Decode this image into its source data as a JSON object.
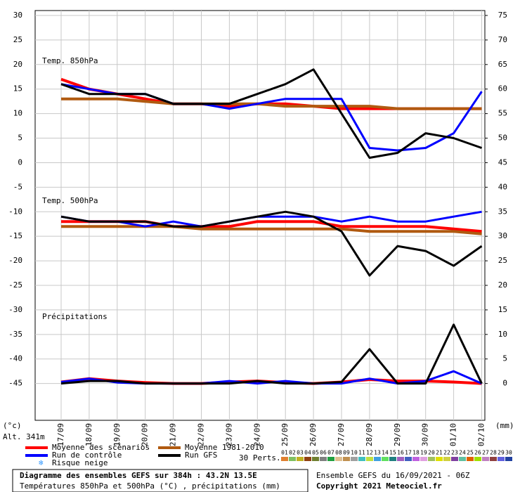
{
  "chart_data": {
    "type": "line",
    "categories": [
      "17/09",
      "18/09",
      "19/09",
      "20/09",
      "21/09",
      "22/09",
      "23/09",
      "24/09",
      "25/09",
      "26/09",
      "27/09",
      "28/09",
      "29/09",
      "30/09",
      "01/10",
      "02/10"
    ],
    "ylim": [
      -52.5,
      31
    ],
    "yticks": [
      30,
      25,
      20,
      15,
      10,
      5,
      0,
      -5,
      -10,
      -15,
      -20,
      -25,
      -30,
      -35,
      -40,
      -45
    ],
    "y2lim": [
      -7.5,
      76
    ],
    "y2ticks": [
      75,
      70,
      65,
      60,
      55,
      50,
      45,
      40,
      35,
      30,
      25,
      20,
      15,
      10,
      5,
      0
    ],
    "grid": true,
    "y_unit_label": "(°c)",
    "y2_unit_label": "(mm)",
    "altitude_label": "Alt. 341m",
    "panel_titles": [
      "Temp. 850hPa",
      "Temp. 500hPa",
      "Précipitations"
    ],
    "series": [
      {
        "name": "Moyenne des scénarios",
        "color": "#ff0000",
        "t850": [
          17,
          15,
          14,
          13,
          12,
          12,
          11.5,
          12,
          12,
          11.5,
          11,
          11,
          11,
          11,
          11,
          11
        ],
        "t500": [
          -12,
          -12,
          -12,
          -12,
          -13,
          -13,
          -13,
          -12,
          -12,
          -12,
          -13,
          -13,
          -13,
          -13,
          -13.5,
          -14
        ],
        "precip": [
          0.3,
          1,
          0.5,
          0.2,
          0,
          0,
          0.3,
          0.5,
          0.2,
          0,
          0.3,
          0.8,
          0.5,
          0.5,
          0.3,
          0
        ]
      },
      {
        "name": "Moyenne 1981-2010",
        "color": "#b05a10",
        "t850": [
          13,
          13,
          13,
          12.5,
          12,
          12,
          12,
          12,
          11.5,
          11.5,
          11.5,
          11.5,
          11,
          11,
          11,
          11
        ],
        "t500": [
          -13,
          -13,
          -13,
          -13,
          -13,
          -13.5,
          -13.5,
          -13.5,
          -13.5,
          -13.5,
          -13.5,
          -14,
          -14,
          -14,
          -14,
          -14.5
        ]
      },
      {
        "name": "Run de contrôle",
        "color": "#0000ff",
        "t850": [
          16,
          15,
          14,
          14,
          12,
          12,
          11,
          12,
          13,
          13,
          13,
          3,
          2.5,
          3,
          6,
          14.5
        ],
        "t500": [
          -11,
          -12,
          -12,
          -13,
          -12,
          -13,
          -12,
          -11,
          -11,
          -11,
          -12,
          -11,
          -12,
          -12,
          -11,
          -10
        ],
        "precip": [
          0.3,
          1,
          0.2,
          0,
          0,
          0,
          0.5,
          0,
          0.5,
          0,
          0,
          1,
          0,
          0.5,
          2.5,
          0
        ]
      },
      {
        "name": "Run GFS",
        "color": "#000000",
        "t850": [
          16,
          14,
          14,
          14,
          12,
          12,
          12,
          14,
          16,
          19,
          10,
          1,
          2,
          6,
          5,
          3
        ],
        "t500": [
          -11,
          -12,
          -12,
          -12,
          -13,
          -13,
          -12,
          -11,
          -10,
          -11,
          -14,
          -23,
          -17,
          -18,
          -21,
          -17
        ],
        "precip": [
          0,
          0.5,
          0.5,
          0,
          0,
          0,
          0,
          0.5,
          0,
          0,
          0.3,
          7,
          0,
          0,
          12,
          0
        ]
      }
    ],
    "snow_label": "Risque neige",
    "perts_label": "30 Perts.",
    "perts": [
      {
        "label": "01",
        "color": "#e08030"
      },
      {
        "label": "02",
        "color": "#80c060"
      },
      {
        "label": "03",
        "color": "#c0b020"
      },
      {
        "label": "04",
        "color": "#904010"
      },
      {
        "label": "05",
        "color": "#708030"
      },
      {
        "label": "06",
        "color": "#808080"
      },
      {
        "label": "07",
        "color": "#20a040"
      },
      {
        "label": "08",
        "color": "#e0c090"
      },
      {
        "label": "09",
        "color": "#c09050"
      },
      {
        "label": "10",
        "color": "#a0a0a0"
      },
      {
        "label": "11",
        "color": "#40c0c0"
      },
      {
        "label": "12",
        "color": "#c0e040"
      },
      {
        "label": "13",
        "color": "#40a0e0"
      },
      {
        "label": "14",
        "color": "#60e060"
      },
      {
        "label": "15",
        "color": "#208080"
      },
      {
        "label": "16",
        "color": "#a060c0"
      },
      {
        "label": "17",
        "color": "#4060c0"
      },
      {
        "label": "18",
        "color": "#c060e0"
      },
      {
        "label": "19",
        "color": "#e0a0e0"
      },
      {
        "label": "20",
        "color": "#a0c060"
      },
      {
        "label": "21",
        "color": "#e0e000"
      },
      {
        "label": "22",
        "color": "#d0d040"
      },
      {
        "label": "23",
        "color": "#8040a0"
      },
      {
        "label": "24",
        "color": "#60c0a0"
      },
      {
        "label": "25",
        "color": "#e06000"
      },
      {
        "label": "26",
        "color": "#a0e000"
      },
      {
        "label": "27",
        "color": "#c080c0"
      },
      {
        "label": "28",
        "color": "#904040"
      },
      {
        "label": "29",
        "color": "#6060e0"
      },
      {
        "label": "30",
        "color": "#2040a0"
      }
    ],
    "footer": {
      "title": "Diagramme des ensembles GEFS sur 384h : 43.2N 13.5E",
      "subtitle": "Températures 850hPa et 500hPa (°C) , précipitations (mm)",
      "run": "Ensemble GEFS du 16/09/2021 - 06Z",
      "copyright": "Copyright 2021 Meteociel.fr"
    }
  }
}
